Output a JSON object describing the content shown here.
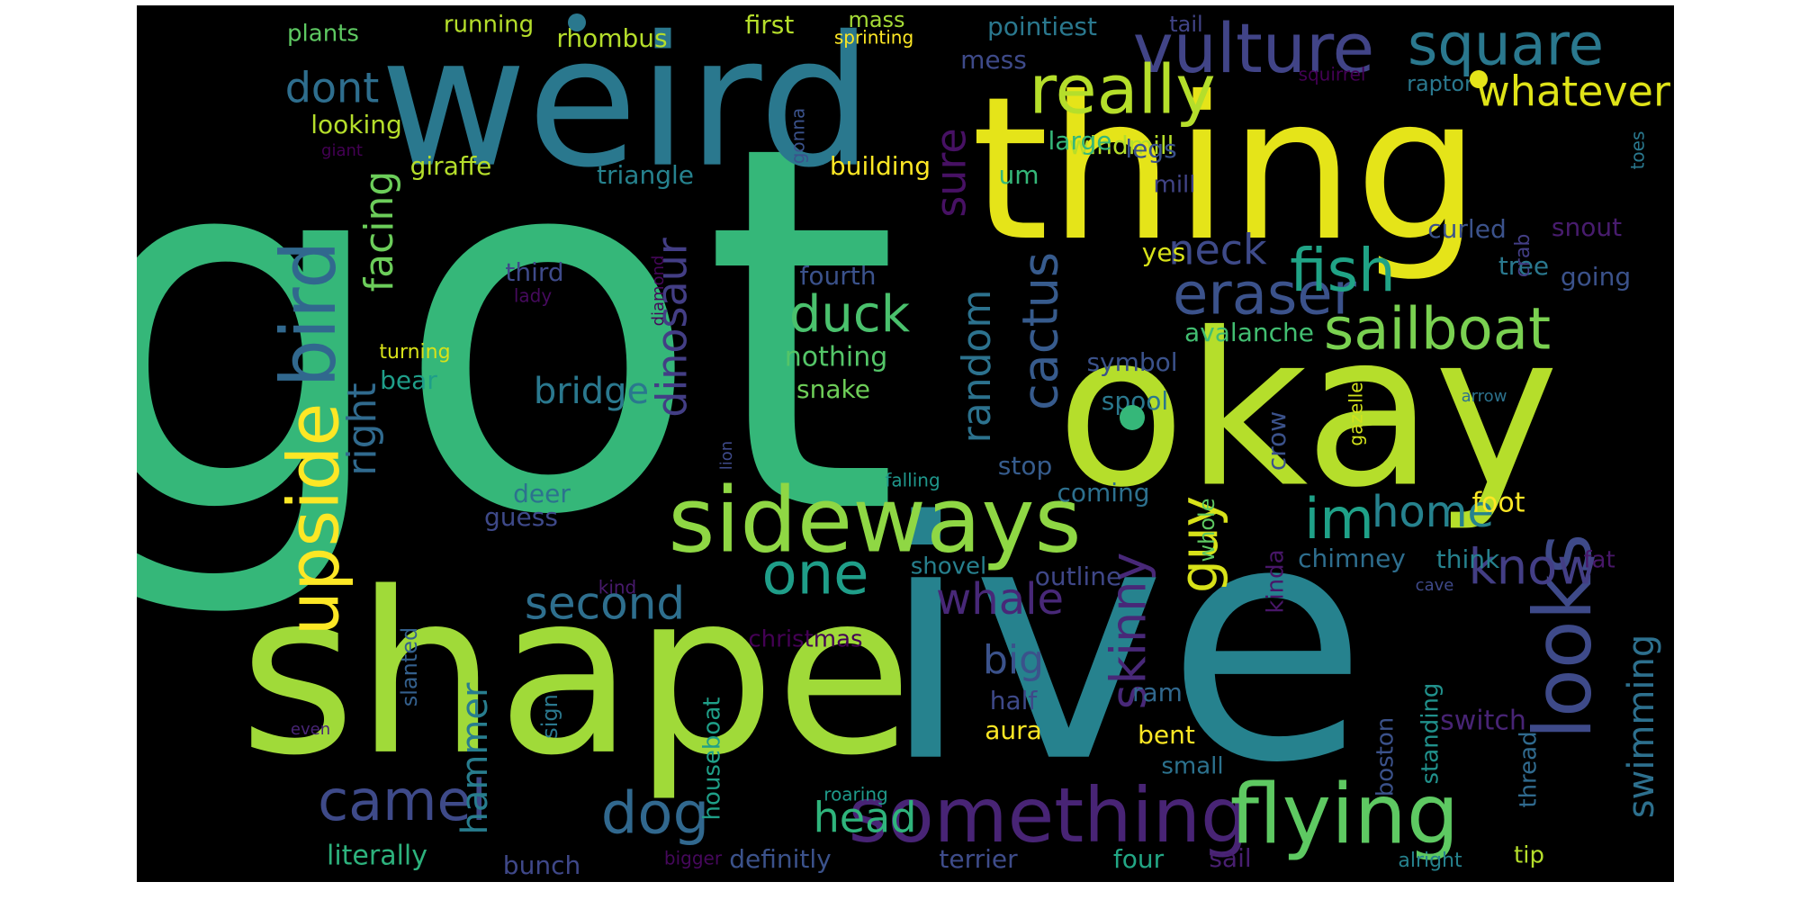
{
  "words": [
    {
      "text": "got",
      "color": "#35b779"
    },
    {
      "text": "ive",
      "color": "#26828e"
    },
    {
      "text": "shape",
      "color": "#a0da39"
    },
    {
      "text": "thing",
      "color": "#e5e419"
    },
    {
      "text": "okay",
      "color": "#b5de2b"
    },
    {
      "text": "weird",
      "color": "#2a788e"
    },
    {
      "text": "sideways",
      "color": "#8fd744"
    },
    {
      "text": "something",
      "color": "#482475"
    },
    {
      "text": "flying",
      "color": "#5ec962"
    },
    {
      "text": "looks",
      "color": "#3e4a89"
    },
    {
      "text": "upside",
      "color": "#fde725"
    },
    {
      "text": "bird",
      "color": "#31688e"
    },
    {
      "text": "vulture",
      "color": "#414487"
    },
    {
      "text": "square",
      "color": "#2a788e"
    },
    {
      "text": "really",
      "color": "#b5de2b"
    },
    {
      "text": "sailboat",
      "color": "#7ad151"
    },
    {
      "text": "eraser",
      "color": "#3b528b"
    },
    {
      "text": "fish",
      "color": "#20a386"
    },
    {
      "text": "one",
      "color": "#1f9e89"
    },
    {
      "text": "dog",
      "color": "#31688e"
    },
    {
      "text": "camel",
      "color": "#3e4a89"
    },
    {
      "text": "guy",
      "color": "#d8e219"
    },
    {
      "text": "im",
      "color": "#1fa188"
    },
    {
      "text": "home",
      "color": "#26828e"
    },
    {
      "text": "know",
      "color": "#433e85"
    },
    {
      "text": "whale",
      "color": "#482878"
    },
    {
      "text": "duck",
      "color": "#4ac16d"
    },
    {
      "text": "dinosaur",
      "color": "#433e85"
    },
    {
      "text": "cactus",
      "color": "#375b8d"
    },
    {
      "text": "random",
      "color": "#2c728e"
    },
    {
      "text": "skinny",
      "color": "#482878"
    },
    {
      "text": "second",
      "color": "#2e6f8e"
    },
    {
      "text": "right",
      "color": "#306a8e"
    },
    {
      "text": "facing",
      "color": "#6ccd5a"
    },
    {
      "text": "sure",
      "color": "#471164"
    },
    {
      "text": "neck",
      "color": "#3e4a89"
    },
    {
      "text": "swimming",
      "color": "#2d708e"
    },
    {
      "text": "head",
      "color": "#2fb47c"
    },
    {
      "text": "hammer",
      "color": "#287d8e"
    },
    {
      "text": "big",
      "color": "#3b528b"
    },
    {
      "text": "bridge",
      "color": "#2a788e"
    },
    {
      "text": "dont",
      "color": "#2e6e8e"
    },
    {
      "text": "whatever",
      "color": "#dfe318"
    },
    {
      "text": "literally",
      "color": "#2db27d"
    },
    {
      "text": "bunch",
      "color": "#3f4889"
    },
    {
      "text": "definitly",
      "color": "#3b528b"
    },
    {
      "text": "terrier",
      "color": "#3e4c8a"
    },
    {
      "text": "four",
      "color": "#22a785"
    },
    {
      "text": "sail",
      "color": "#481f70"
    },
    {
      "text": "tip",
      "color": "#b5de2b"
    },
    {
      "text": "alright",
      "color": "#26828e"
    },
    {
      "text": "bigger",
      "color": "#46085c"
    },
    {
      "text": "roaring",
      "color": "#1f998a"
    },
    {
      "text": "houseboat",
      "color": "#1f9f88"
    },
    {
      "text": "christmas",
      "color": "#440154"
    },
    {
      "text": "slanted",
      "color": "#34608d"
    },
    {
      "text": "sign",
      "color": "#2a788e"
    },
    {
      "text": "even",
      "color": "#482576"
    },
    {
      "text": "aura",
      "color": "#fde725"
    },
    {
      "text": "half",
      "color": "#3e4989"
    },
    {
      "text": "bent",
      "color": "#fde725"
    },
    {
      "text": "ram",
      "color": "#31688e"
    },
    {
      "text": "small",
      "color": "#2c728e"
    },
    {
      "text": "switch",
      "color": "#482475"
    },
    {
      "text": "thread",
      "color": "#306a8e"
    },
    {
      "text": "boston",
      "color": "#3b528b"
    },
    {
      "text": "standing",
      "color": "#21918c"
    },
    {
      "text": "shovel",
      "color": "#27808e"
    },
    {
      "text": "outline",
      "color": "#3f4788"
    },
    {
      "text": "chimney",
      "color": "#2e6e8e"
    },
    {
      "text": "think",
      "color": "#26828e"
    },
    {
      "text": "fat",
      "color": "#481769"
    },
    {
      "text": "cave",
      "color": "#3e4989"
    },
    {
      "text": "kind",
      "color": "#481a6c"
    },
    {
      "text": "kinda",
      "color": "#481668"
    },
    {
      "text": "whole",
      "color": "#5ec962"
    },
    {
      "text": "foot",
      "color": "#fde725"
    },
    {
      "text": "coming",
      "color": "#2d708e"
    },
    {
      "text": "stop",
      "color": "#365c8d"
    },
    {
      "text": "falling",
      "color": "#1f968b"
    },
    {
      "text": "deer",
      "color": "#2c728e"
    },
    {
      "text": "guess",
      "color": "#3e4989"
    },
    {
      "text": "lion",
      "color": "#3e4a89"
    },
    {
      "text": "gazelle",
      "color": "#d2e21b"
    },
    {
      "text": "crow",
      "color": "#3b528b"
    },
    {
      "text": "arrow",
      "color": "#2c728e"
    },
    {
      "text": "spool",
      "color": "#2a788e"
    },
    {
      "text": "symbol",
      "color": "#3b528b"
    },
    {
      "text": "avalanche",
      "color": "#42be71"
    },
    {
      "text": "yes",
      "color": "#d8e219"
    },
    {
      "text": "going",
      "color": "#3b528b"
    },
    {
      "text": "tree",
      "color": "#2a788e"
    },
    {
      "text": "crab",
      "color": "#433e85"
    },
    {
      "text": "snout",
      "color": "#481c6e"
    },
    {
      "text": "curled",
      "color": "#3b528b"
    },
    {
      "text": "nothing",
      "color": "#54c568"
    },
    {
      "text": "snake",
      "color": "#6ece58"
    },
    {
      "text": "fourth",
      "color": "#3b528b"
    },
    {
      "text": "diamond",
      "color": "#46075a"
    },
    {
      "text": "third",
      "color": "#3e4a89"
    },
    {
      "text": "lady",
      "color": "#460a5d"
    },
    {
      "text": "turning",
      "color": "#d8e219"
    },
    {
      "text": "bear",
      "color": "#1f9e89"
    },
    {
      "text": "triangle",
      "color": "#26828e"
    },
    {
      "text": "giraffe",
      "color": "#b5de2b"
    },
    {
      "text": "building",
      "color": "#fde725"
    },
    {
      "text": "um",
      "color": "#35b779"
    },
    {
      "text": "gonna",
      "color": "#3b528b"
    },
    {
      "text": "looking",
      "color": "#b5de2b"
    },
    {
      "text": "giant",
      "color": "#440154"
    },
    {
      "text": "plants",
      "color": "#5ec962"
    },
    {
      "text": "running",
      "color": "#b5de2b"
    },
    {
      "text": "rhombus",
      "color": "#b5de2b"
    },
    {
      "text": "first",
      "color": "#b5de2b"
    },
    {
      "text": "mass",
      "color": "#a5db36"
    },
    {
      "text": "sprinting",
      "color": "#fde725"
    },
    {
      "text": "pointiest",
      "color": "#2a788e"
    },
    {
      "text": "mess",
      "color": "#3e4a89"
    },
    {
      "text": "tail",
      "color": "#414487"
    },
    {
      "text": "squirrel",
      "color": "#440154"
    },
    {
      "text": "raptor",
      "color": "#2a788e"
    },
    {
      "text": "windmill",
      "color": "#b5de2b"
    },
    {
      "text": "large",
      "color": "#35b779"
    },
    {
      "text": "legs",
      "color": "#3b528b"
    },
    {
      "text": "mill",
      "color": "#414487"
    },
    {
      "text": "toes",
      "color": "#2a788e"
    }
  ]
}
